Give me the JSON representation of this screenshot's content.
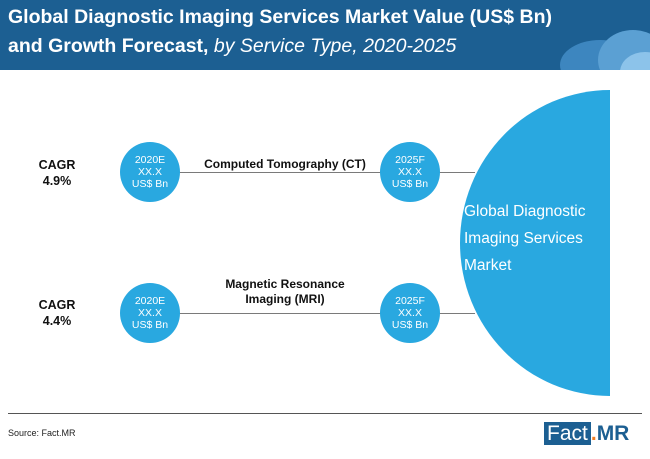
{
  "title": {
    "line1": "Global Diagnostic Imaging Services Market Value (US$ Bn)",
    "line2_bold": "and Growth Forecast,",
    "line2_italic": "by Service Type, 2020-2025"
  },
  "segments": [
    {
      "cagr_label": "CAGR",
      "cagr_value": "4.9%",
      "name": "Computed Tomography (CT)",
      "start": {
        "year": "2020E",
        "value": "XX.X",
        "unit": "US$ Bn"
      },
      "end": {
        "year": "2025F",
        "value": "XX.X",
        "unit": "US$ Bn"
      }
    },
    {
      "cagr_label": "CAGR",
      "cagr_value": "4.4%",
      "name_line1": "Magnetic Resonance",
      "name_line2": "Imaging (MRI)",
      "start": {
        "year": "2020E",
        "value": "XX.X",
        "unit": "US$ Bn"
      },
      "end": {
        "year": "2025F",
        "value": "XX.X",
        "unit": "US$ Bn"
      }
    }
  ],
  "market": {
    "line1": "Global Diagnostic",
    "line2": "Imaging Services",
    "line3": "Market"
  },
  "source": "Source: Fact.MR",
  "logo": {
    "fact": "Fact",
    "dot": ".",
    "mr": "MR"
  },
  "colors": {
    "header": "#1c5f92",
    "accent": "#29a8e0",
    "logo_dot": "#ef7d22"
  }
}
